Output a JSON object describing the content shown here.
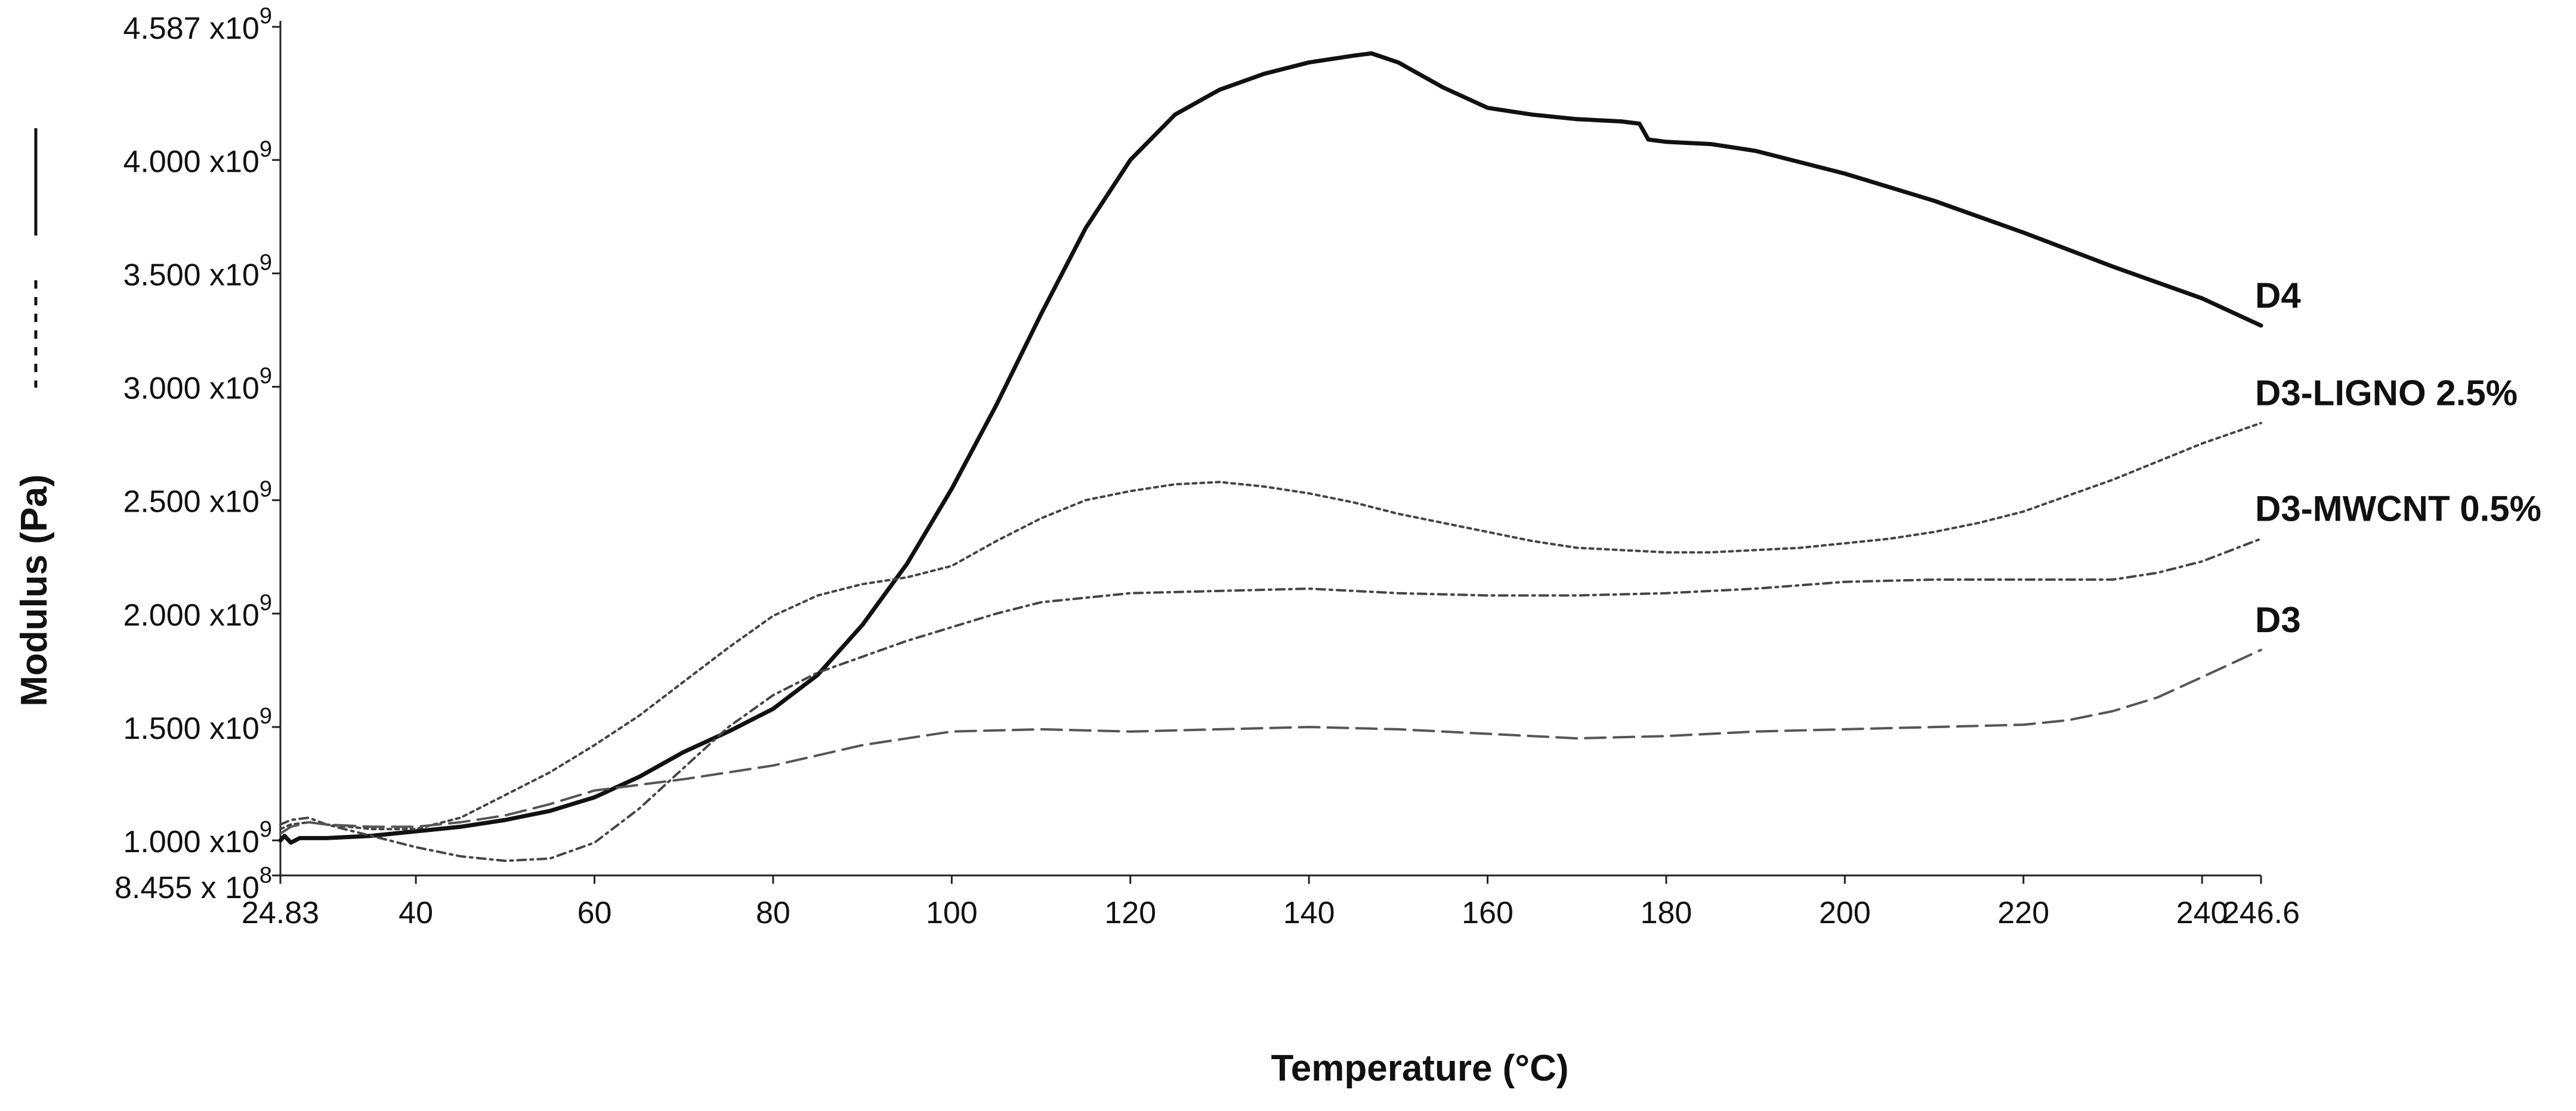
{
  "chart_data": {
    "type": "line",
    "title": "",
    "xlabel": "Temperature (°C)",
    "ylabel": "Modulus (Pa)",
    "xlim": [
      24.83,
      246.6
    ],
    "ylim": [
      845500000,
      4587000000
    ],
    "x_ticks": [
      24.83,
      40,
      60,
      80,
      100,
      120,
      140,
      160,
      180,
      200,
      220,
      240,
      246.6
    ],
    "x_tick_labels": [
      "24.83",
      "40",
      "60",
      "80",
      "100",
      "120",
      "140",
      "160",
      "180",
      "200",
      "220",
      "240",
      "246.6"
    ],
    "y_ticks": [
      {
        "value": 845500000,
        "mantissa": "8.455 x 10",
        "exponent": "8"
      },
      {
        "value": 1000000000,
        "mantissa": "1.000 x10",
        "exponent": "9"
      },
      {
        "value": 1500000000,
        "mantissa": "1.500 x10",
        "exponent": "9"
      },
      {
        "value": 2000000000,
        "mantissa": "2.000 x10",
        "exponent": "9"
      },
      {
        "value": 2500000000,
        "mantissa": "2.500 x10",
        "exponent": "9"
      },
      {
        "value": 3000000000,
        "mantissa": "3.000 x10",
        "exponent": "9"
      },
      {
        "value": 3500000000,
        "mantissa": "3.500 x10",
        "exponent": "9"
      },
      {
        "value": 4000000000,
        "mantissa": "4.000 x10",
        "exponent": "9"
      },
      {
        "value": 4587000000,
        "mantissa": "4.587 x10",
        "exponent": "9"
      }
    ],
    "grid": false,
    "legend": "inline labels at right end of each curve",
    "series": [
      {
        "name": "D4",
        "style": "solid",
        "x": [
          24.83,
          25.3,
          26,
          27,
          30,
          35,
          40,
          45,
          50,
          55,
          60,
          65,
          70,
          75,
          80,
          85,
          90,
          95,
          100,
          105,
          110,
          115,
          120,
          125,
          130,
          135,
          140,
          145,
          147,
          150,
          155,
          160,
          165,
          170,
          175,
          177,
          178,
          180,
          185,
          190,
          200,
          210,
          220,
          230,
          240,
          246.6
        ],
        "y": [
          1000000000,
          1020000000,
          990000000,
          1010000000,
          1010000000,
          1020000000,
          1040000000,
          1060000000,
          1090000000,
          1130000000,
          1190000000,
          1280000000,
          1390000000,
          1480000000,
          1580000000,
          1730000000,
          1950000000,
          2220000000,
          2550000000,
          2920000000,
          3320000000,
          3700000000,
          4000000000,
          4200000000,
          4310000000,
          4380000000,
          4430000000,
          4460000000,
          4470000000,
          4430000000,
          4320000000,
          4230000000,
          4200000000,
          4180000000,
          4170000000,
          4160000000,
          4090000000,
          4080000000,
          4070000000,
          4040000000,
          3940000000,
          3820000000,
          3680000000,
          3530000000,
          3390000000,
          3270000000
        ]
      },
      {
        "name": "D3-LIGNO 2.5%",
        "style": "dotted",
        "x": [
          24.83,
          26,
          28,
          30,
          35,
          40,
          45,
          50,
          55,
          60,
          65,
          70,
          75,
          80,
          85,
          90,
          95,
          100,
          105,
          110,
          115,
          120,
          125,
          130,
          135,
          140,
          145,
          150,
          155,
          160,
          165,
          170,
          175,
          180,
          185,
          190,
          195,
          200,
          205,
          210,
          215,
          220,
          225,
          230,
          235,
          240,
          246.6
        ],
        "y": [
          1050000000,
          1070000000,
          1080000000,
          1070000000,
          1050000000,
          1050000000,
          1100000000,
          1200000000,
          1300000000,
          1420000000,
          1550000000,
          1700000000,
          1850000000,
          1990000000,
          2080000000,
          2130000000,
          2160000000,
          2210000000,
          2320000000,
          2420000000,
          2500000000,
          2540000000,
          2570000000,
          2580000000,
          2560000000,
          2530000000,
          2490000000,
          2440000000,
          2400000000,
          2360000000,
          2320000000,
          2290000000,
          2280000000,
          2270000000,
          2270000000,
          2280000000,
          2290000000,
          2310000000,
          2330000000,
          2360000000,
          2400000000,
          2450000000,
          2520000000,
          2590000000,
          2670000000,
          2750000000,
          2840000000
        ]
      },
      {
        "name": "D3-MWCNT 0.5%",
        "style": "dash-dot",
        "x": [
          24.83,
          26,
          28,
          30,
          35,
          40,
          45,
          50,
          55,
          60,
          65,
          70,
          75,
          80,
          85,
          90,
          95,
          100,
          105,
          110,
          115,
          120,
          130,
          140,
          150,
          160,
          170,
          180,
          190,
          200,
          210,
          220,
          225,
          230,
          235,
          240,
          246.6
        ],
        "y": [
          1070000000,
          1090000000,
          1100000000,
          1070000000,
          1020000000,
          970000000,
          930000000,
          910000000,
          920000000,
          990000000,
          1140000000,
          1320000000,
          1500000000,
          1640000000,
          1740000000,
          1810000000,
          1880000000,
          1940000000,
          2000000000,
          2050000000,
          2070000000,
          2090000000,
          2100000000,
          2110000000,
          2090000000,
          2080000000,
          2080000000,
          2090000000,
          2110000000,
          2140000000,
          2150000000,
          2150000000,
          2150000000,
          2150000000,
          2180000000,
          2230000000,
          2330000000
        ]
      },
      {
        "name": "D3",
        "style": "dashed",
        "x": [
          24.83,
          26,
          28,
          30,
          35,
          40,
          45,
          50,
          55,
          60,
          70,
          80,
          90,
          100,
          110,
          120,
          130,
          140,
          150,
          160,
          170,
          180,
          190,
          200,
          210,
          220,
          225,
          230,
          235,
          240,
          246.6
        ],
        "y": [
          1030000000,
          1060000000,
          1080000000,
          1070000000,
          1060000000,
          1060000000,
          1080000000,
          1110000000,
          1160000000,
          1220000000,
          1270000000,
          1330000000,
          1420000000,
          1480000000,
          1490000000,
          1480000000,
          1490000000,
          1500000000,
          1490000000,
          1470000000,
          1450000000,
          1460000000,
          1480000000,
          1490000000,
          1500000000,
          1510000000,
          1530000000,
          1570000000,
          1630000000,
          1720000000,
          1840000000
        ]
      }
    ]
  },
  "y_axis_legend_marks": [
    "solid",
    "dashed"
  ]
}
